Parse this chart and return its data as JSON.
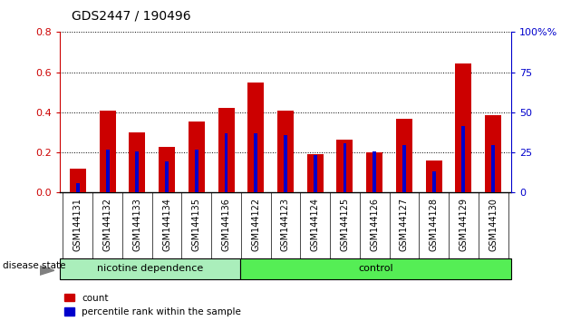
{
  "title": "GDS2447 / 190496",
  "categories": [
    "GSM144131",
    "GSM144132",
    "GSM144133",
    "GSM144134",
    "GSM144135",
    "GSM144136",
    "GSM144122",
    "GSM144123",
    "GSM144124",
    "GSM144125",
    "GSM144126",
    "GSM144127",
    "GSM144128",
    "GSM144129",
    "GSM144130"
  ],
  "count_values": [
    0.12,
    0.41,
    0.3,
    0.23,
    0.355,
    0.42,
    0.55,
    0.41,
    0.19,
    0.265,
    0.2,
    0.37,
    0.16,
    0.645,
    0.385
  ],
  "percentile_values": [
    0.045,
    0.215,
    0.205,
    0.155,
    0.215,
    0.295,
    0.295,
    0.285,
    0.185,
    0.245,
    0.205,
    0.235,
    0.105,
    0.33,
    0.235
  ],
  "count_color": "#cc0000",
  "percentile_color": "#0000cc",
  "ylim_left": [
    0,
    0.8
  ],
  "ylim_right": [
    0,
    100
  ],
  "yticks_left": [
    0,
    0.2,
    0.4,
    0.6,
    0.8
  ],
  "yticks_right": [
    0,
    25,
    50,
    75,
    100
  ],
  "group1_label": "nicotine dependence",
  "group2_label": "control",
  "group1_n": 6,
  "group2_n": 9,
  "group1_color": "#aaeebb",
  "group2_color": "#55ee55",
  "disease_state_label": "disease state",
  "legend_count": "count",
  "legend_percentile": "percentile rank within the sample",
  "bar_width": 0.55,
  "percentile_bar_width": 0.12,
  "left_tick_color": "#cc0000",
  "right_tick_color": "#0000cc",
  "background_color": "#ffffff",
  "ticklabel_bg": "#cccccc",
  "plot_bg_color": "#ffffff"
}
